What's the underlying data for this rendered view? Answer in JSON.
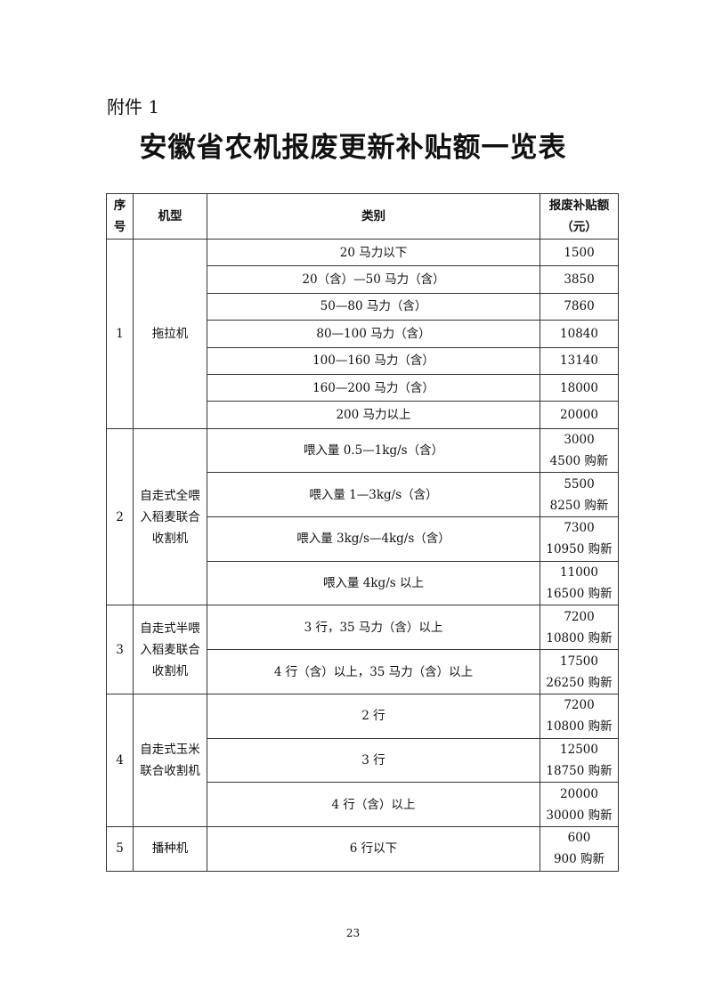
{
  "attachment_label": "附件 1",
  "title": "安徽省农机报废更新补贴额一览表",
  "headers": {
    "no_line1": "序",
    "no_line2": "号",
    "type": "机型",
    "category": "类别",
    "amount_line1": "报废补贴额",
    "amount_line2": "（元）"
  },
  "groups": [
    {
      "no": "1",
      "type": "拖拉机",
      "rows": [
        {
          "category": "20 马力以下",
          "amount": "1500"
        },
        {
          "category": "20（含）—50 马力（含）",
          "amount": "3850"
        },
        {
          "category": "50—80 马力（含）",
          "amount": "7860"
        },
        {
          "category": "80—100 马力（含）",
          "amount": "10840"
        },
        {
          "category": "100—160 马力（含）",
          "amount": "13140"
        },
        {
          "category": "160—200 马力（含）",
          "amount": "18000"
        },
        {
          "category": "200 马力以上",
          "amount": "20000"
        }
      ]
    },
    {
      "no": "2",
      "type": "自走式全喂入稻麦联合收割机",
      "rows": [
        {
          "category": "喂入量 0.5—1kg/s（含）",
          "amount": "3000",
          "amount_new": "4500 购新"
        },
        {
          "category": "喂入量 1—3kg/s（含）",
          "amount": "5500",
          "amount_new": "8250 购新"
        },
        {
          "category": "喂入量 3kg/s—4kg/s（含）",
          "amount": "7300",
          "amount_new": "10950 购新"
        },
        {
          "category": "喂入量 4kg/s 以上",
          "amount": "11000",
          "amount_new": "16500 购新"
        }
      ]
    },
    {
      "no": "3",
      "type": "自走式半喂入稻麦联合收割机",
      "rows": [
        {
          "category": "3 行，35 马力（含）以上",
          "amount": "7200",
          "amount_new": "10800 购新"
        },
        {
          "category": "4 行（含）以上，35 马力（含）以上",
          "amount": "17500",
          "amount_new": "26250 购新"
        }
      ]
    },
    {
      "no": "4",
      "type": "自走式玉米联合收割机",
      "rows": [
        {
          "category": "2 行",
          "amount": "7200",
          "amount_new": "10800 购新"
        },
        {
          "category": "3 行",
          "amount": "12500",
          "amount_new": "18750 购新"
        },
        {
          "category": "4 行（含）以上",
          "amount": "20000",
          "amount_new": "30000 购新"
        }
      ]
    },
    {
      "no": "5",
      "type": "播种机",
      "rows": [
        {
          "category": "6 行以下",
          "amount": "600",
          "amount_new": "900 购新"
        }
      ]
    }
  ],
  "page_number": "23"
}
